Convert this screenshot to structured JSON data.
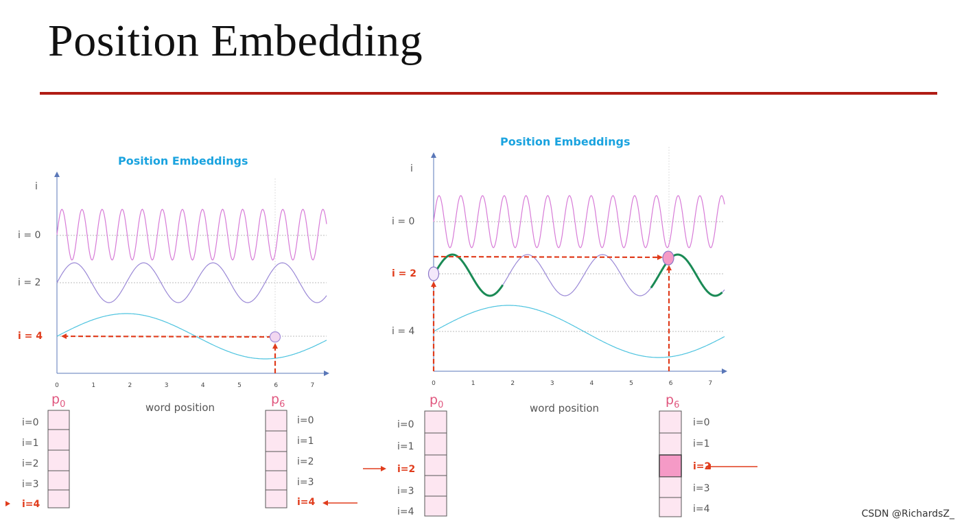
{
  "slide": {
    "title": "Position Embedding",
    "watermark": "CSDN @RichardsZ_"
  },
  "colors": {
    "accent_rule": "#b01c14",
    "chart_title": "#1aa3df",
    "wave_i0": "#d77ad7",
    "wave_i2": "#9a88d6",
    "wave_i4": "#4cc3df",
    "highlight_green": "#1a8a55",
    "arrow_red": "#e03c1c",
    "vector_cell": "#fde6f1",
    "vector_cell_highlight": "#f59ac6",
    "label_pink": "#e0567e"
  },
  "icons": {
    "left_row_pointer": "left-pointing-triangle-icon",
    "pointer_arrows": "red-arrow-icon"
  },
  "chart_data": [
    {
      "type": "line",
      "title": "Position Embeddings",
      "ylabel": "i",
      "xlabel": "word position",
      "x_ticks": [
        "0",
        "1",
        "2",
        "3",
        "4",
        "5",
        "6",
        "7"
      ],
      "xlim": [
        0,
        7.4
      ],
      "series": [
        {
          "name": "i = 0",
          "function": "sin",
          "period": 0.55
        },
        {
          "name": "i = 2",
          "function": "sin",
          "period": 1.9
        },
        {
          "name": "i = 4",
          "function": "sin",
          "period": 7.6
        }
      ],
      "y_labels": [
        "i = 0",
        "i = 2",
        "i = 4"
      ],
      "highlighted_row": "i = 4",
      "highlighted_position": 6,
      "vectors": [
        {
          "label": "p",
          "subscript": "0",
          "rows": [
            "i=0",
            "i=1",
            "i=2",
            "i=3",
            "i=4"
          ],
          "side": "left"
        },
        {
          "label": "p",
          "subscript": "6",
          "rows": [
            "i=0",
            "i=1",
            "i=2",
            "i=3",
            "i=4"
          ],
          "side": "right"
        }
      ]
    },
    {
      "type": "line",
      "title": "Position Embeddings",
      "ylabel": "i",
      "xlabel": "word position",
      "x_ticks": [
        "0",
        "1",
        "2",
        "3",
        "4",
        "5",
        "6",
        "7"
      ],
      "xlim": [
        0,
        7.4
      ],
      "series": [
        {
          "name": "i = 0",
          "function": "sin",
          "period": 0.55
        },
        {
          "name": "i = 2",
          "function": "sin",
          "period": 1.9
        },
        {
          "name": "i = 4",
          "function": "sin",
          "period": 7.6
        }
      ],
      "y_labels": [
        "i = 0",
        "i = 2",
        "i = 4"
      ],
      "highlighted_row": "i = 2",
      "highlighted_positions": [
        0,
        6
      ],
      "vectors": [
        {
          "label": "p",
          "subscript": "0",
          "rows": [
            "i=0",
            "i=1",
            "i=2",
            "i=3",
            "i=4"
          ],
          "side": "left"
        },
        {
          "label": "p",
          "subscript": "6",
          "rows": [
            "i=0",
            "i=1",
            "i=2",
            "i=3",
            "i=4"
          ],
          "side": "right"
        }
      ]
    }
  ]
}
